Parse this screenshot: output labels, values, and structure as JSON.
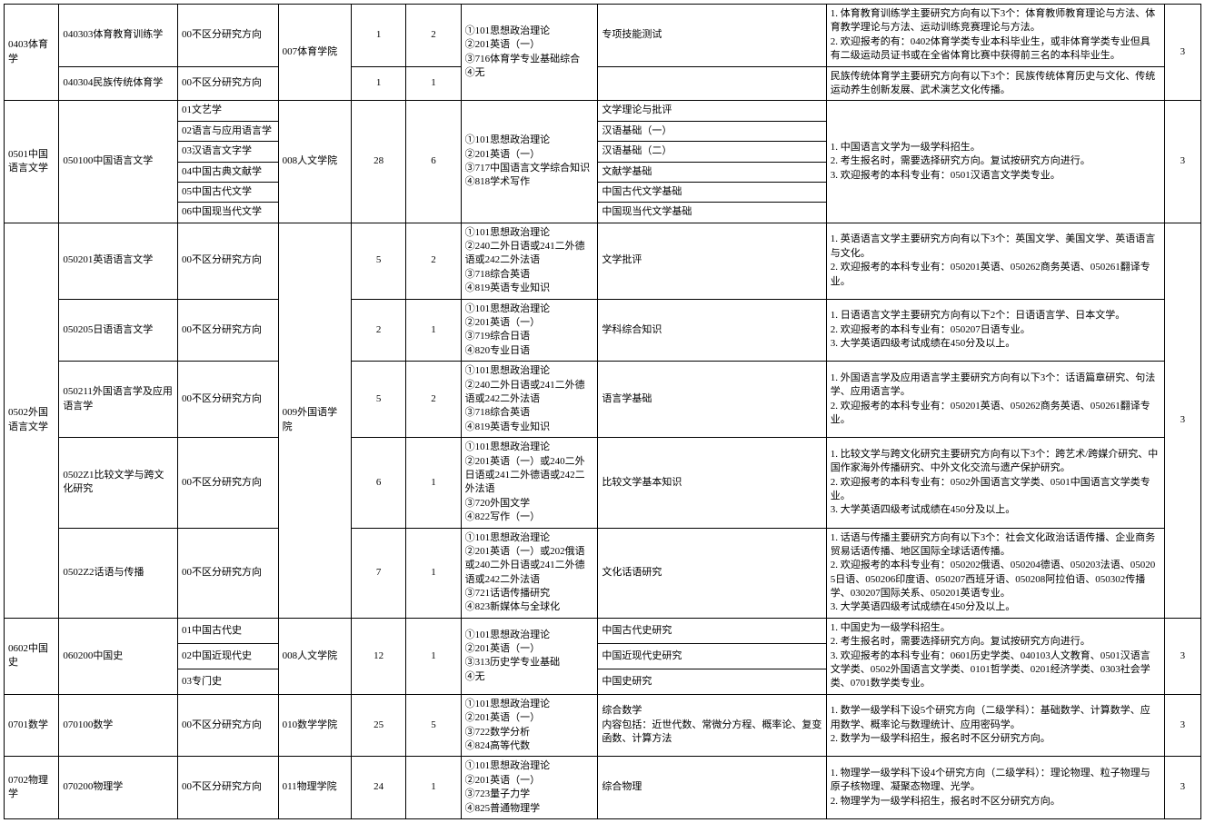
{
  "rows": [
    {
      "c1": "0403体育学",
      "c1rs": 2,
      "c2": "040303体育教育训练学",
      "c3": "00不区分研究方向",
      "c4": "007体育学院",
      "c4rs": 2,
      "c5": "1",
      "c6": "2",
      "c7": "①101思想政治理论\n②201英语（一）\n③716体育学专业基础综合\n④无",
      "c7rs": 2,
      "c8": "专项技能测试",
      "c9": "1. 体育教育训练学主要研究方向有以下3个：体育教师教育理论与方法、体育教学理论与方法、运动训练竞赛理论与方法。\n2. 欢迎报考的有：0402体育学类专业本科毕业生，或非体育学类专业但具有二级运动员证书或在全省体育比赛中获得前三名的本科毕业生。",
      "c10": "3",
      "c10rs": 2
    },
    {
      "c2": "040304民族传统体育学",
      "c3": "00不区分研究方向",
      "c5": "1",
      "c6": "1",
      "c8": "",
      "c9": "民族传统体育学主要研究方向有以下3个：民族传统体育历史与文化、传统运动养生创新发展、武术演艺文化传播。"
    },
    {
      "c1": "0501中国语言文学",
      "c1rs": 6,
      "c2": "050100中国语言文学",
      "c2rs": 6,
      "c3": "01文艺学",
      "c4": "008人文学院",
      "c4rs": 6,
      "c5": "28",
      "c5rs": 6,
      "c6": "6",
      "c6rs": 6,
      "c7": "①101思想政治理论\n②201英语（一）\n③717中国语言文学综合知识\n④818学术写作",
      "c7rs": 6,
      "c8": "文学理论与批评",
      "c9": "1. 中国语言文学为一级学科招生。\n2. 考生报名时，需要选择研究方向。复试按研究方向进行。\n3. 欢迎报考的本科专业有：0501汉语言文学类专业。",
      "c9rs": 6,
      "c10": "3",
      "c10rs": 6
    },
    {
      "c3": "02语言与应用语言学",
      "c8": "汉语基础（一）"
    },
    {
      "c3": "03汉语言文字学",
      "c8": "汉语基础（二）"
    },
    {
      "c3": "04中国古典文献学",
      "c8": "文献学基础"
    },
    {
      "c3": "05中国古代文学",
      "c8": "中国古代文学基础"
    },
    {
      "c3": "06中国现当代文学",
      "c8": "中国现当代文学基础"
    },
    {
      "c1": "0502外国语言文学",
      "c1rs": 5,
      "c2": "050201英语语言文学",
      "c3": "00不区分研究方向",
      "c4": "009外国语学院",
      "c4rs": 5,
      "c5": "5",
      "c6": "2",
      "c7": "①101思想政治理论\n②240二外日语或241二外德语或242二外法语\n③718综合英语\n④819英语专业知识",
      "c8": "文学批评",
      "c9": "1. 英语语言文学主要研究方向有以下3个：英国文学、美国文学、英语语言与文化。\n2. 欢迎报考的本科专业有：050201英语、050262商务英语、050261翻译专业。",
      "c10": "3",
      "c10rs": 5
    },
    {
      "c2": "050205日语语言文学",
      "c3": "00不区分研究方向",
      "c5": "2",
      "c6": "1",
      "c7": "①101思想政治理论\n②201英语（一）\n③719综合日语\n④820专业日语",
      "c8": "学科综合知识",
      "c9": "1. 日语语言文学主要研究方向有以下2个：日语语言学、日本文学。\n2. 欢迎报考的本科专业有：050207日语专业。\n3. 大学英语四级考试成绩在450分及以上。"
    },
    {
      "c2": "050211外国语言学及应用语言学",
      "c3": "00不区分研究方向",
      "c5": "5",
      "c6": "2",
      "c7": "①101思想政治理论\n②240二外日语或241二外德语或242二外法语\n③718综合英语\n④819英语专业知识",
      "c8": "语言学基础",
      "c9": "1. 外国语言学及应用语言学主要研究方向有以下3个：话语篇章研究、句法学、应用语言学。\n2. 欢迎报考的本科专业有：050201英语、050262商务英语、050261翻译专业。"
    },
    {
      "c2": "0502Z1比较文学与跨文化研究",
      "c3": "00不区分研究方向",
      "c5": "6",
      "c6": "1",
      "c7": "①101思想政治理论\n②201英语（一）或240二外日语或241二外德语或242二外法语\n③720外国文学\n④822写作（一）",
      "c8": "比较文学基本知识",
      "c9": "1. 比较文学与跨文化研究主要研究方向有以下3个：跨艺术/跨媒介研究、中国作家海外传播研究、中外文化交流与遗产保护研究。\n2. 欢迎报考的本科专业有：0502外国语言文学类、0501中国语言文学类专业。\n3. 大学英语四级考试成绩在450分及以上。"
    },
    {
      "c2": "0502Z2话语与传播",
      "c3": "00不区分研究方向",
      "c5": "7",
      "c6": "1",
      "c7": "①101思想政治理论\n②201英语（一）或202俄语或240二外日语或241二外德语或242二外法语\n③721话语传播研究\n④823新媒体与全球化",
      "c8": "文化话语研究",
      "c9": "1. 话语与传播主要研究方向有以下3个：社会文化政治话语传播、企业商务贸易话语传播、地区国际全球话语传播。\n2. 欢迎报考的本科专业有：050202俄语、050204德语、050203法语、050205日语、050206印度语、050207西班牙语、050208阿拉伯语、050302传播学、030207国际关系、050201英语专业。\n3. 大学英语四级考试成绩在450分及以上。"
    },
    {
      "c1": "0602中国史",
      "c1rs": 3,
      "c2": "060200中国史",
      "c2rs": 3,
      "c3": "01中国古代史",
      "c4": "008人文学院",
      "c4rs": 3,
      "c5": "12",
      "c5rs": 3,
      "c6": "1",
      "c6rs": 3,
      "c7": "①101思想政治理论\n②201英语（一）\n③313历史学专业基础\n④无",
      "c7rs": 3,
      "c8": "中国古代史研究",
      "c9": "1. 中国史为一级学科招生。\n2. 考生报名时，需要选择研究方向。复试按研究方向进行。\n3. 欢迎报考的本科专业有：0601历史学类、040103人文教育、0501汉语言文学类、0502外国语言文学类、0101哲学类、0201经济学类、0303社会学类、0701数学类专业。",
      "c9rs": 3,
      "c10": "3",
      "c10rs": 3
    },
    {
      "c3": "02中国近现代史",
      "c8": "中国近现代史研究"
    },
    {
      "c3": "03专门史",
      "c8": "中国史研究"
    },
    {
      "c1": "0701数学",
      "c2": "070100数学",
      "c3": "00不区分研究方向",
      "c4": "010数学学院",
      "c5": "25",
      "c6": "5",
      "c7": "①101思想政治理论\n②201英语（一）\n③722数学分析\n④824高等代数",
      "c8": "综合数学\n内容包括：近世代数、常微分方程、概率论、复变函数、计算方法",
      "c9": "1. 数学一级学科下设5个研究方向（二级学科）：基础数学、计算数学、应用数学、概率论与数理统计、应用密码学。\n2. 数学为一级学科招生，报名时不区分研究方向。",
      "c10": "3"
    },
    {
      "c1": "0702物理学",
      "c2": "070200物理学",
      "c3": "00不区分研究方向",
      "c4": "011物理学院",
      "c5": "24",
      "c6": "1",
      "c7": "①101思想政治理论\n②201英语（一）\n③723量子力学\n④825普通物理学",
      "c8": "综合物理",
      "c9": "1. 物理学一级学科下设4个研究方向（二级学科）：理论物理、粒子物理与原子核物理、凝聚态物理、光学。\n2. 物理学为一级学科招生，报名时不区分研究方向。",
      "c10": "3"
    }
  ]
}
